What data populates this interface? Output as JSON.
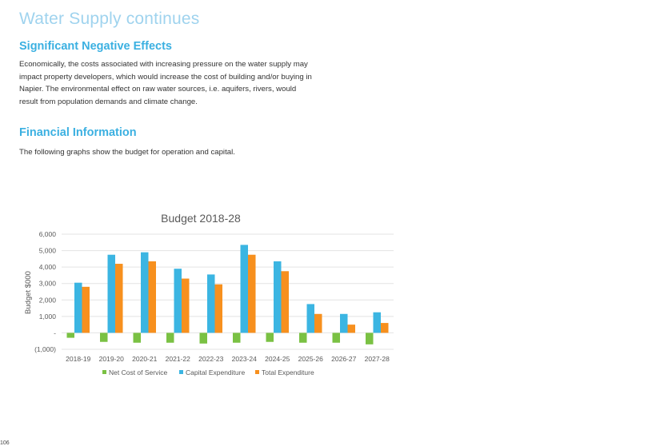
{
  "page": {
    "title": "Water Supply continues",
    "page_number": "106"
  },
  "sections": {
    "negative_effects": {
      "heading": "Significant Negative Effects",
      "body": "Economically, the costs associated with increasing pressure on the water supply may impact property developers, which would increase the cost of building and/or buying in Napier.  The environmental effect on raw water sources, i.e. aquifers, rivers, would result from population demands and climate change."
    },
    "financial": {
      "heading": "Financial Information",
      "body": "The following graphs show the budget for operation and capital."
    }
  },
  "chart_data": {
    "type": "bar",
    "title": "Budget 2018-28",
    "xlabel": "",
    "ylabel": "Budget $000",
    "ylim": [
      -1000,
      6000
    ],
    "yticks": [
      -1000,
      0,
      1000,
      2000,
      3000,
      4000,
      5000,
      6000
    ],
    "ytick_labels": [
      "(1,000)",
      "-",
      "1,000",
      "2,000",
      "3,000",
      "4,000",
      "5,000",
      "6,000"
    ],
    "grid": true,
    "legend_position": "bottom",
    "categories": [
      "2018-19",
      "2019-20",
      "2020-21",
      "2021-22",
      "2022-23",
      "2023-24",
      "2024-25",
      "2025-26",
      "2026-27",
      "2027-28"
    ],
    "series": [
      {
        "name": "Net Cost of Service",
        "color": "#7ac143",
        "values": [
          -300,
          -550,
          -600,
          -600,
          -650,
          -600,
          -550,
          -600,
          -600,
          -700
        ]
      },
      {
        "name": "Capital Expenditure",
        "color": "#3bb5e2",
        "values": [
          3050,
          4750,
          4900,
          3900,
          3550,
          5350,
          4350,
          1750,
          1150,
          1250
        ]
      },
      {
        "name": "Total Expenditure",
        "color": "#f7901e",
        "values": [
          2800,
          4200,
          4350,
          3300,
          2950,
          4750,
          3750,
          1150,
          500,
          600
        ]
      }
    ]
  }
}
